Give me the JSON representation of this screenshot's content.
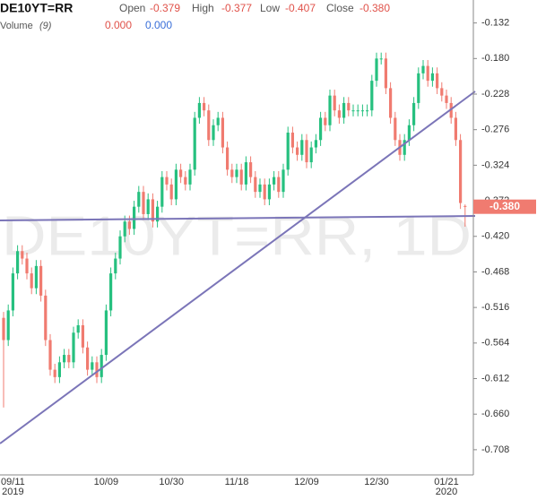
{
  "chart_data": {
    "type": "candlestick",
    "title": "DE10YT=RR",
    "watermark": "DE10YT=RR, 1D",
    "ohlc": [
      {
        "name": "Open",
        "value": -0.379
      },
      {
        "name": "High",
        "value": -0.377
      },
      {
        "name": "Low",
        "value": -0.407
      },
      {
        "name": "Close",
        "value": -0.38,
        "label": "-0.380"
      }
    ],
    "volume": {
      "name": "Volume",
      "params": "(9)",
      "values": [
        0,
        0
      ],
      "value_labels": [
        "0.000",
        "0.000"
      ],
      "colors": [
        "#e0524a",
        "#3a6fd8"
      ]
    },
    "last_price": {
      "value": -0.38,
      "label": "-0.380",
      "color": "#f07b70"
    },
    "up_color": "#26c07f",
    "down_color": "#f07b70",
    "categories": [
      null,
      null,
      "09/11",
      null,
      null,
      null,
      null,
      null,
      null,
      null,
      null,
      null,
      null,
      null,
      null,
      null,
      null,
      null,
      null,
      null,
      null,
      null,
      "10/09",
      null,
      null,
      null,
      null,
      null,
      null,
      null,
      null,
      null,
      null,
      null,
      null,
      null,
      "10/30",
      null,
      null,
      null,
      null,
      null,
      null,
      null,
      null,
      null,
      null,
      null,
      null,
      null,
      "11/18",
      null,
      null,
      null,
      null,
      null,
      null,
      null,
      null,
      null,
      null,
      null,
      null,
      null,
      null,
      "12/09",
      null,
      null,
      null,
      null,
      null,
      null,
      null,
      null,
      null,
      null,
      null,
      null,
      null,
      null,
      "12/30",
      null,
      null,
      null,
      null,
      null,
      null,
      null,
      null,
      null,
      null,
      null,
      null,
      null,
      null,
      "01/21",
      null,
      null,
      null,
      null
    ],
    "category_years": [
      null,
      null,
      "2019",
      null,
      null,
      null,
      null,
      null,
      null,
      null,
      null,
      null,
      null,
      null,
      null,
      null,
      null,
      null,
      null,
      null,
      null,
      null,
      null,
      null,
      null,
      null,
      null,
      null,
      null,
      null,
      null,
      null,
      null,
      null,
      null,
      null,
      null,
      null,
      null,
      null,
      null,
      null,
      null,
      null,
      null,
      null,
      null,
      null,
      null,
      null,
      null,
      null,
      null,
      null,
      null,
      null,
      null,
      null,
      null,
      null,
      null,
      null,
      null,
      null,
      null,
      null,
      null,
      null,
      null,
      null,
      null,
      null,
      null,
      null,
      null,
      null,
      null,
      null,
      null,
      null,
      null,
      null,
      null,
      null,
      null,
      null,
      null,
      null,
      null,
      null,
      null,
      null,
      null,
      null,
      null,
      "2020",
      null,
      null,
      null,
      null
    ],
    "open": [
      -0.53,
      -0.56,
      -0.52,
      -0.47,
      -0.44,
      -0.45,
      -0.47,
      -0.49,
      -0.46,
      -0.5,
      -0.56,
      -0.6,
      -0.61,
      -0.59,
      -0.58,
      -0.59,
      -0.55,
      -0.54,
      -0.57,
      -0.6,
      -0.59,
      -0.61,
      -0.58,
      -0.52,
      -0.47,
      -0.45,
      -0.42,
      -0.4,
      -0.41,
      -0.38,
      -0.36,
      -0.39,
      -0.37,
      -0.4,
      -0.38,
      -0.34,
      -0.35,
      -0.37,
      -0.33,
      -0.34,
      -0.35,
      -0.33,
      -0.26,
      -0.24,
      -0.25,
      -0.29,
      -0.27,
      -0.26,
      -0.3,
      -0.33,
      -0.34,
      -0.33,
      -0.35,
      -0.32,
      -0.34,
      -0.36,
      -0.35,
      -0.37,
      -0.35,
      -0.34,
      -0.36,
      -0.33,
      -0.28,
      -0.3,
      -0.31,
      -0.29,
      -0.32,
      -0.3,
      -0.29,
      -0.26,
      -0.27,
      -0.23,
      -0.25,
      -0.26,
      -0.24,
      -0.25,
      -0.25,
      -0.25,
      -0.25,
      -0.25,
      -0.21,
      -0.18,
      -0.18,
      -0.22,
      -0.26,
      -0.29,
      -0.31,
      -0.29,
      -0.27,
      -0.24,
      -0.2,
      -0.19,
      -0.21,
      -0.2,
      -0.22,
      -0.23,
      -0.24,
      -0.26,
      -0.29,
      -0.379
    ],
    "high": [
      -0.522,
      -0.512,
      -0.462,
      -0.432,
      -0.432,
      -0.442,
      -0.462,
      -0.452,
      -0.452,
      -0.492,
      -0.552,
      -0.592,
      -0.582,
      -0.572,
      -0.572,
      -0.542,
      -0.532,
      -0.532,
      -0.562,
      -0.582,
      -0.582,
      -0.572,
      -0.512,
      -0.462,
      -0.442,
      -0.412,
      -0.392,
      -0.392,
      -0.372,
      -0.352,
      -0.352,
      -0.362,
      -0.362,
      -0.372,
      -0.332,
      -0.332,
      -0.342,
      -0.322,
      -0.322,
      -0.332,
      -0.322,
      -0.252,
      -0.232,
      -0.232,
      -0.242,
      -0.262,
      -0.252,
      -0.252,
      -0.292,
      -0.322,
      -0.322,
      -0.322,
      -0.312,
      -0.312,
      -0.332,
      -0.342,
      -0.342,
      -0.342,
      -0.332,
      -0.332,
      -0.322,
      -0.272,
      -0.272,
      -0.292,
      -0.282,
      -0.282,
      -0.292,
      -0.282,
      -0.252,
      -0.252,
      -0.222,
      -0.222,
      -0.242,
      -0.232,
      -0.232,
      -0.242,
      -0.242,
      -0.242,
      -0.242,
      -0.202,
      -0.172,
      -0.172,
      -0.172,
      -0.212,
      -0.252,
      -0.282,
      -0.282,
      -0.262,
      -0.232,
      -0.192,
      -0.182,
      -0.182,
      -0.192,
      -0.192,
      -0.212,
      -0.222,
      -0.232,
      -0.252,
      -0.282,
      -0.377
    ],
    "low": [
      -0.651,
      -0.568,
      -0.528,
      -0.478,
      -0.458,
      -0.478,
      -0.498,
      -0.498,
      -0.508,
      -0.568,
      -0.608,
      -0.618,
      -0.618,
      -0.598,
      -0.598,
      -0.598,
      -0.558,
      -0.578,
      -0.608,
      -0.608,
      -0.618,
      -0.618,
      -0.588,
      -0.528,
      -0.478,
      -0.458,
      -0.428,
      -0.418,
      -0.418,
      -0.388,
      -0.398,
      -0.398,
      -0.408,
      -0.408,
      -0.388,
      -0.358,
      -0.378,
      -0.378,
      -0.348,
      -0.358,
      -0.358,
      -0.338,
      -0.268,
      -0.258,
      -0.298,
      -0.298,
      -0.278,
      -0.308,
      -0.338,
      -0.348,
      -0.348,
      -0.358,
      -0.358,
      -0.348,
      -0.368,
      -0.368,
      -0.378,
      -0.378,
      -0.358,
      -0.368,
      -0.368,
      -0.338,
      -0.308,
      -0.318,
      -0.318,
      -0.328,
      -0.328,
      -0.308,
      -0.298,
      -0.278,
      -0.278,
      -0.258,
      -0.268,
      -0.268,
      -0.258,
      -0.258,
      -0.258,
      -0.258,
      -0.258,
      -0.258,
      -0.218,
      -0.188,
      -0.228,
      -0.268,
      -0.298,
      -0.318,
      -0.318,
      -0.298,
      -0.278,
      -0.248,
      -0.208,
      -0.218,
      -0.218,
      -0.228,
      -0.238,
      -0.248,
      -0.268,
      -0.298,
      -0.383,
      -0.407
    ],
    "close": [
      -0.56,
      -0.52,
      -0.47,
      -0.44,
      -0.45,
      -0.47,
      -0.49,
      -0.46,
      -0.5,
      -0.56,
      -0.6,
      -0.61,
      -0.59,
      -0.58,
      -0.59,
      -0.55,
      -0.54,
      -0.57,
      -0.6,
      -0.59,
      -0.61,
      -0.58,
      -0.52,
      -0.47,
      -0.45,
      -0.42,
      -0.4,
      -0.41,
      -0.38,
      -0.36,
      -0.39,
      -0.37,
      -0.4,
      -0.38,
      -0.34,
      -0.35,
      -0.37,
      -0.33,
      -0.34,
      -0.35,
      -0.33,
      -0.26,
      -0.24,
      -0.25,
      -0.29,
      -0.27,
      -0.26,
      -0.3,
      -0.33,
      -0.34,
      -0.33,
      -0.35,
      -0.32,
      -0.34,
      -0.36,
      -0.35,
      -0.37,
      -0.35,
      -0.34,
      -0.36,
      -0.33,
      -0.28,
      -0.3,
      -0.31,
      -0.29,
      -0.32,
      -0.3,
      -0.29,
      -0.26,
      -0.27,
      -0.23,
      -0.25,
      -0.26,
      -0.24,
      -0.25,
      -0.25,
      -0.25,
      -0.25,
      -0.25,
      -0.21,
      -0.18,
      -0.18,
      -0.22,
      -0.26,
      -0.29,
      -0.31,
      -0.29,
      -0.27,
      -0.24,
      -0.2,
      -0.19,
      -0.21,
      -0.2,
      -0.22,
      -0.23,
      -0.24,
      -0.26,
      -0.29,
      -0.375,
      -0.38
    ],
    "ylim": [
      -0.742,
      -0.101
    ],
    "yticks": [
      -0.132,
      {
        "value": -0.18,
        "label": "-0.180"
      },
      -0.228,
      -0.276,
      -0.324,
      -0.372,
      {
        "value": -0.42,
        "label": "-0.420"
      },
      -0.468,
      -0.516,
      -0.564,
      -0.612,
      {
        "value": -0.66,
        "label": "-0.660"
      },
      -0.708
    ]
  }
}
